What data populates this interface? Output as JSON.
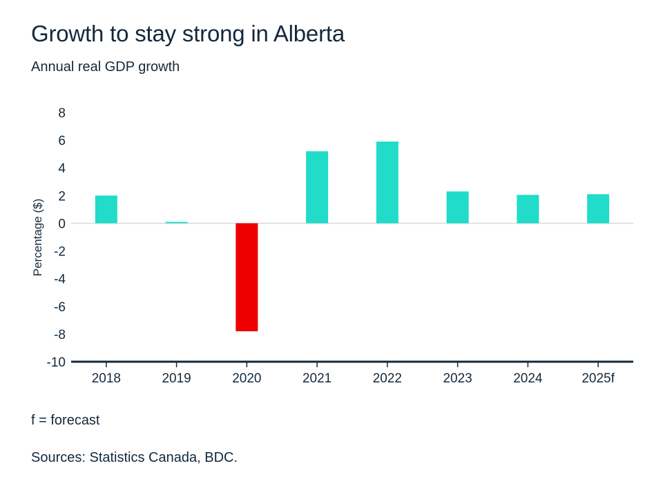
{
  "header": {
    "title": "Growth to stay strong in Alberta",
    "subtitle": "Annual real GDP growth"
  },
  "footer": {
    "note": "f = forecast",
    "source": "Sources: Statistics Canada, BDC."
  },
  "colors": {
    "positive": "#20dcc8",
    "negative": "#ee0000",
    "axis": "#14283a",
    "zero_line": "#d9d9d9"
  },
  "chart_data": {
    "type": "bar",
    "title": "Growth to stay strong in Alberta",
    "subtitle": "Annual real GDP growth",
    "xlabel": "",
    "ylabel": "Percentage ($)",
    "categories": [
      "2018",
      "2019",
      "2020",
      "2021",
      "2022",
      "2023",
      "2024",
      "2025f"
    ],
    "values": [
      2.0,
      0.1,
      -7.8,
      5.2,
      5.9,
      2.3,
      2.05,
      2.1
    ],
    "ylim": [
      -10,
      8
    ],
    "yticks": [
      8,
      6,
      4,
      2,
      0,
      -2,
      -4,
      -6,
      -8,
      -10
    ],
    "grid": false,
    "legend": "none"
  }
}
